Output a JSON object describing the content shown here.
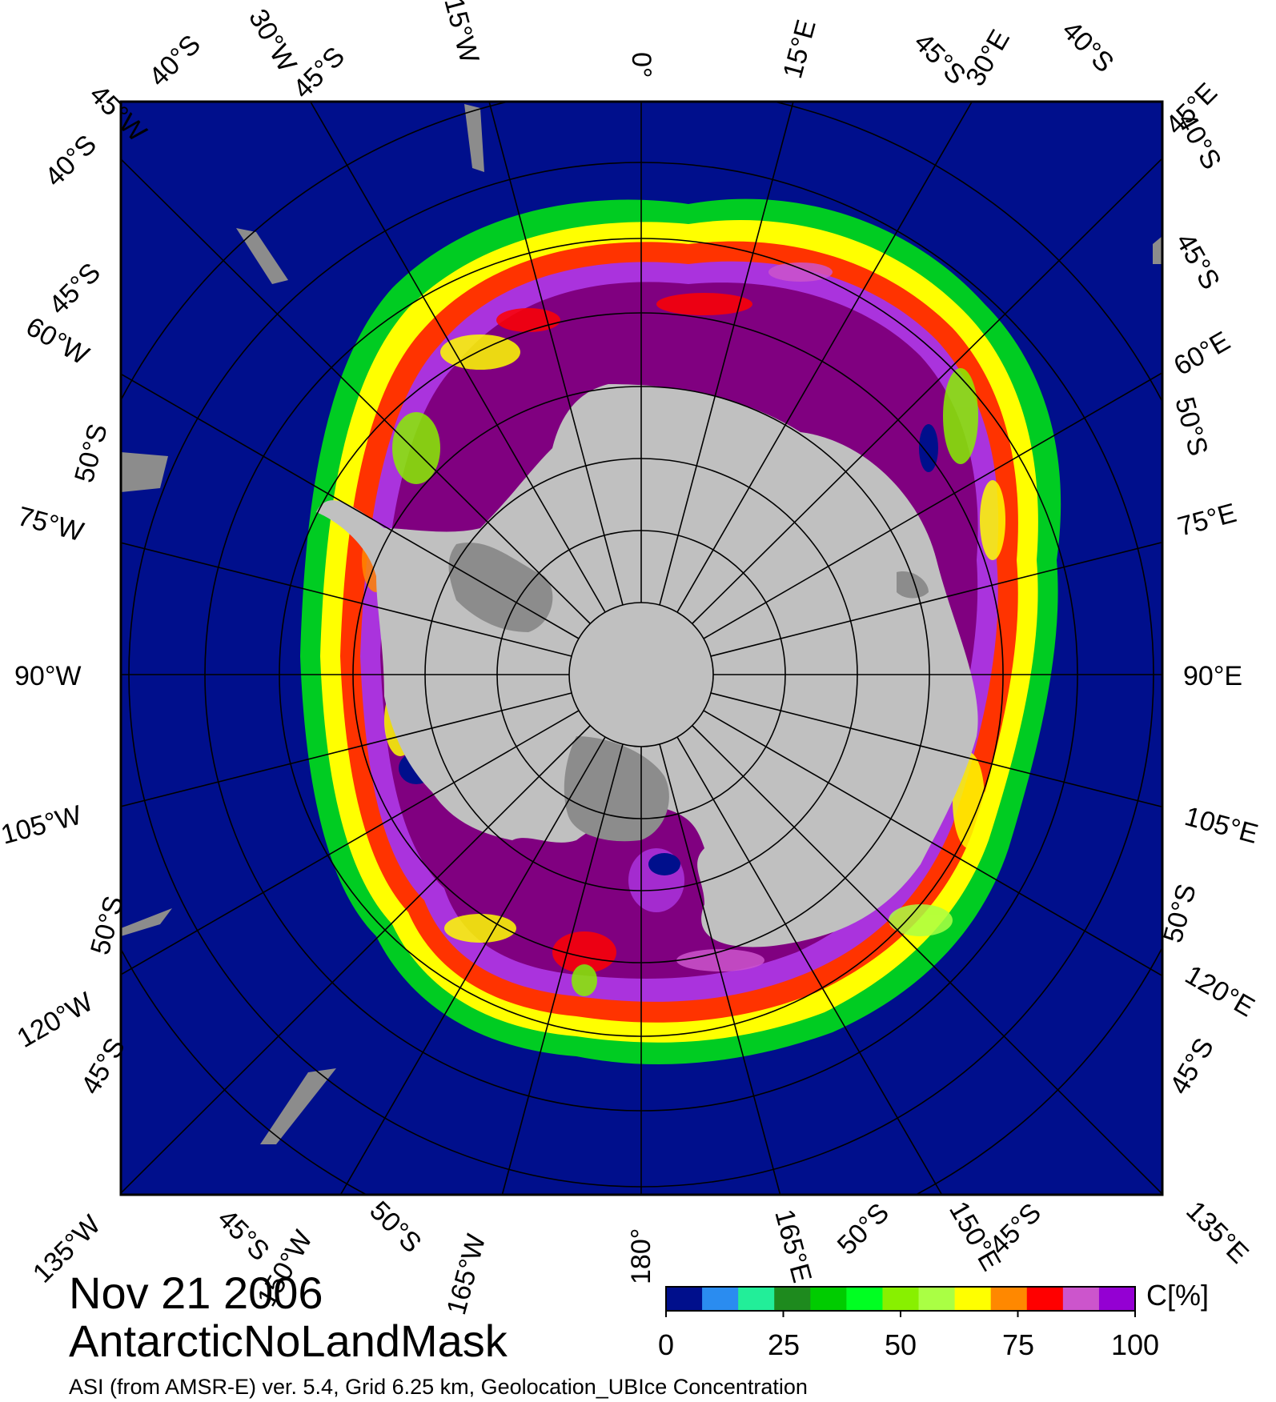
{
  "header": {
    "date": "Nov 21 2006",
    "region": "AntarcticNoLandMask"
  },
  "footer": {
    "source": "ASI (from AMSR-E) ver. 5.4,  Grid 6.25 km, Geolocation_UB",
    "product": "Ice Concentration"
  },
  "colorbar": {
    "unit": "C[%]",
    "ticks": [
      "0",
      "25",
      "50",
      "75",
      "100"
    ],
    "colors": [
      "#000f8c",
      "#2a8cf0",
      "#22ee99",
      "#1e8a1e",
      "#00cc00",
      "#00ff22",
      "#88f000",
      "#aaff44",
      "#ffff00",
      "#ff8800",
      "#ff0000",
      "#cc55cc",
      "#9400d3"
    ]
  },
  "map_labels": {
    "top": [
      "45°W",
      "40°S",
      "30°W",
      "45°S",
      "15°W",
      "0°",
      "15°E",
      "45°S",
      "30°E",
      "40°S",
      "45°E"
    ],
    "left": [
      "40°S",
      "45°S",
      "60°W",
      "50°S",
      "75°W",
      "90°W",
      "105°W",
      "50°S",
      "120°W",
      "45°S"
    ],
    "right": [
      "40°S",
      "45°S",
      "60°E",
      "50°S",
      "75°E",
      "90°E",
      "105°E",
      "50°S",
      "120°E",
      "45°S"
    ],
    "bottom": [
      "135°W",
      "45°S",
      "150°W",
      "50°S",
      "165°W",
      "180°",
      "165°E",
      "50°S",
      "150°E",
      "45°S",
      "135°E"
    ]
  },
  "legend_colors": {
    "ocean": "#000f8c",
    "land": "#c0c0c0",
    "ice_shelf": "#8c8c8c",
    "high_concentration": "#800080"
  }
}
